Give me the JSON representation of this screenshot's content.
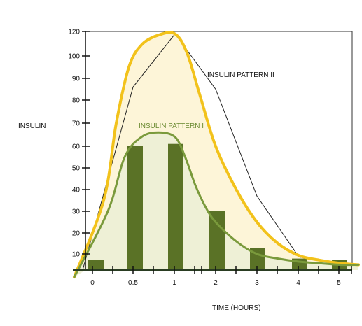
{
  "chart_data": {
    "type": "area",
    "title": "",
    "ylabel": "INSULIN",
    "xlabel": "TIME (HOURS)",
    "yticks": [
      "120",
      "100",
      "90",
      "80",
      "70",
      "60",
      "50",
      "40",
      "30",
      "20",
      "10"
    ],
    "xticks": [
      "0",
      "0.5",
      "1",
      "2",
      "3",
      "4",
      "5"
    ],
    "series": [
      {
        "name": "INSULIN PATTERN II",
        "style": "yellow-filled-curve",
        "color": "#F2C21B",
        "fill": "#FDF5D8",
        "points": [
          [
            0.0,
            0
          ],
          [
            0.15,
            35
          ],
          [
            0.3,
            70
          ],
          [
            0.45,
            95
          ],
          [
            0.6,
            109
          ],
          [
            0.8,
            117
          ],
          [
            1.0,
            118
          ],
          [
            1.3,
            102
          ],
          [
            1.6,
            83
          ],
          [
            2.0,
            60
          ],
          [
            2.5,
            40
          ],
          [
            3.0,
            25
          ],
          [
            3.5,
            15
          ],
          [
            4.0,
            9
          ],
          [
            4.5,
            6
          ],
          [
            5.0,
            4
          ],
          [
            5.3,
            3
          ]
        ]
      },
      {
        "name": "INSULIN PATTERN I",
        "style": "green-filled-curve",
        "color": "#7A9A3C",
        "fill": "#EEF0D6",
        "points": [
          [
            0.0,
            0
          ],
          [
            0.2,
            30
          ],
          [
            0.4,
            55
          ],
          [
            0.6,
            64
          ],
          [
            0.8,
            66
          ],
          [
            1.0,
            64
          ],
          [
            1.25,
            55
          ],
          [
            1.5,
            42
          ],
          [
            1.75,
            32
          ],
          [
            2.0,
            25
          ],
          [
            2.5,
            16
          ],
          [
            3.0,
            10
          ],
          [
            3.5,
            7
          ],
          [
            4.0,
            5
          ],
          [
            4.5,
            4
          ],
          [
            5.0,
            3
          ],
          [
            5.3,
            3
          ]
        ]
      },
      {
        "name": "",
        "style": "thin-black-polyline",
        "color": "#222222",
        "points": [
          [
            0.0,
            0
          ],
          [
            0.5,
            86
          ],
          [
            1.0,
            118
          ],
          [
            2.0,
            85
          ],
          [
            3.0,
            37
          ],
          [
            4.0,
            8
          ],
          [
            5.0,
            4
          ]
        ]
      }
    ],
    "bars": {
      "color": "#5A7226",
      "x": [
        0.0,
        0.5,
        1.0,
        2.0,
        3.0,
        4.0,
        5.0
      ],
      "values": [
        6,
        60,
        61,
        30,
        13,
        7,
        6
      ]
    },
    "xlim": [
      0,
      5
    ],
    "ylim": [
      0,
      120
    ],
    "grid": false,
    "legend": "inline-labels"
  }
}
